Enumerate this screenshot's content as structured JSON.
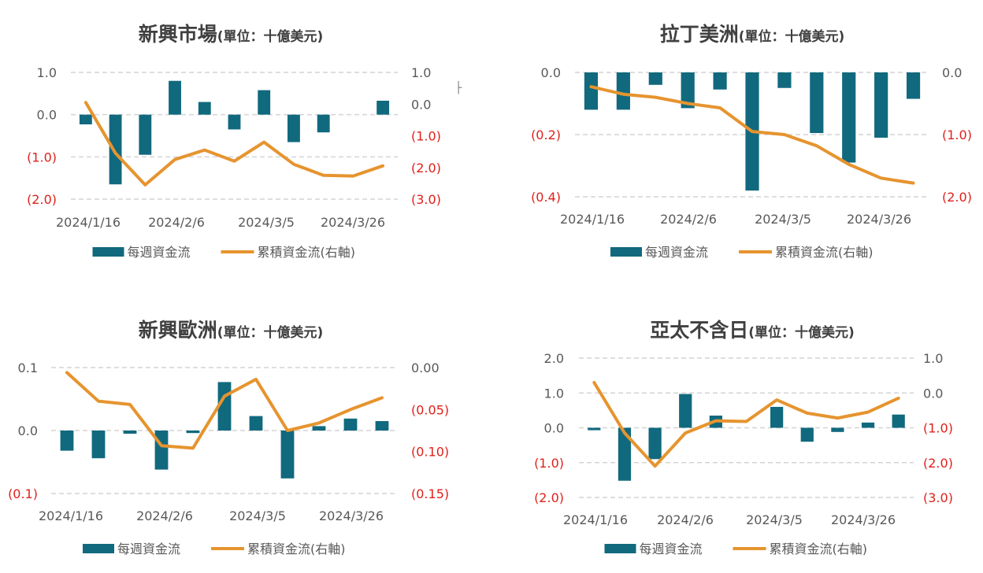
{
  "colors": {
    "bar": "#11697e",
    "line": "#e6942f",
    "grid": "#d4d4d4",
    "neg_label": "#e0201a",
    "axis_text": "#595959",
    "title": "#404040"
  },
  "legend": {
    "bar_label": "每週資金流",
    "line_label": "累積資金流(右軸)"
  },
  "stray_mark": "├",
  "chart_data": [
    {
      "id": "em",
      "type": "bar+line",
      "title": "新興市場",
      "unit_note": "(單位：十億美元)",
      "x_ticks": [
        "2024/1/16",
        "2024/2/6",
        "2024/3/5",
        "2024/3/26"
      ],
      "y_left": {
        "range": [
          -2.0,
          1.0
        ],
        "ticks": [
          "1.0",
          "0.0",
          "(1.0)",
          "(2.0)"
        ]
      },
      "y_right": {
        "range": [
          -3.0,
          1.0
        ],
        "ticks": [
          "1.0",
          "0.0",
          "(1.0)",
          "(2.0)",
          "(3.0)"
        ]
      },
      "series": [
        {
          "name": "每週資金流",
          "axis": "left",
          "values": [
            -0.23,
            -1.65,
            -0.95,
            0.8,
            0.3,
            -0.35,
            0.58,
            -0.65,
            -0.42,
            0.0,
            0.33
          ]
        },
        {
          "name": "累積資金流(右軸)",
          "axis": "right",
          "values": [
            0.05,
            -1.55,
            -2.55,
            -1.75,
            -1.45,
            -1.8,
            -1.2,
            -1.9,
            -2.25,
            -2.27,
            -1.95
          ]
        }
      ]
    },
    {
      "id": "latam",
      "type": "bar+line",
      "title": "拉丁美洲",
      "unit_note": "(單位：十億美元)",
      "x_ticks": [
        "2024/1/16",
        "2024/2/6",
        "2024/3/5",
        "2024/3/26"
      ],
      "y_left": {
        "range": [
          -0.4,
          0.0
        ],
        "ticks": [
          "0.0",
          "(0.2)",
          "(0.4)"
        ]
      },
      "y_right": {
        "range": [
          -2.0,
          0.0
        ],
        "ticks": [
          "0.0",
          "(1.0)",
          "(2.0)"
        ]
      },
      "series": [
        {
          "name": "每週資金流",
          "axis": "left",
          "values": [
            -0.12,
            -0.12,
            -0.04,
            -0.115,
            -0.055,
            -0.38,
            -0.05,
            -0.195,
            -0.29,
            -0.21,
            -0.085
          ]
        },
        {
          "name": "累積資金流(右軸)",
          "axis": "right",
          "values": [
            -0.23,
            -0.35,
            -0.4,
            -0.5,
            -0.57,
            -0.95,
            -1.0,
            -1.18,
            -1.48,
            -1.7,
            -1.78
          ]
        }
      ]
    },
    {
      "id": "emea",
      "type": "bar+line",
      "title": "新興歐洲",
      "unit_note": "(單位：十億美元)",
      "x_ticks": [
        "2024/1/16",
        "2024/2/6",
        "2024/3/5",
        "2024/3/26"
      ],
      "y_left": {
        "range": [
          -0.1,
          0.1
        ],
        "ticks": [
          "0.1",
          "0.0",
          "(0.1)"
        ]
      },
      "y_right": {
        "range": [
          -0.15,
          0.0
        ],
        "ticks": [
          "0.00",
          "(0.05)",
          "(0.10)",
          "(0.15)"
        ]
      },
      "series": [
        {
          "name": "每週資金流",
          "axis": "left",
          "values": [
            -0.032,
            -0.044,
            -0.005,
            -0.062,
            -0.004,
            0.077,
            0.023,
            -0.076,
            0.007,
            0.019,
            0.015
          ]
        },
        {
          "name": "累積資金流(右軸)",
          "axis": "right",
          "values": [
            -0.006,
            -0.04,
            -0.044,
            -0.093,
            -0.096,
            -0.034,
            -0.014,
            -0.075,
            -0.066,
            -0.05,
            -0.036
          ]
        }
      ]
    },
    {
      "id": "apac",
      "type": "bar+line",
      "title": "亞太不含日",
      "unit_note": "(單位：十億美元)",
      "x_ticks": [
        "2024/1/16",
        "2024/2/6",
        "2024/3/5",
        "2024/3/26"
      ],
      "y_left": {
        "range": [
          -2.0,
          2.0
        ],
        "ticks": [
          "2.0",
          "1.0",
          "0.0",
          "(1.0)",
          "(2.0)"
        ]
      },
      "y_right": {
        "range": [
          -3.0,
          1.0
        ],
        "ticks": [
          "1.0",
          "0.0",
          "(1.0)",
          "(2.0)",
          "(3.0)"
        ]
      },
      "series": [
        {
          "name": "每週資金流",
          "axis": "left",
          "values": [
            -0.07,
            -1.52,
            -0.9,
            0.97,
            0.35,
            0.0,
            0.6,
            -0.4,
            -0.12,
            0.15,
            0.38
          ]
        },
        {
          "name": "累積資金流(右軸)",
          "axis": "right",
          "values": [
            0.3,
            -1.15,
            -2.1,
            -1.15,
            -0.8,
            -0.82,
            -0.2,
            -0.58,
            -0.72,
            -0.55,
            -0.15
          ]
        }
      ]
    }
  ]
}
